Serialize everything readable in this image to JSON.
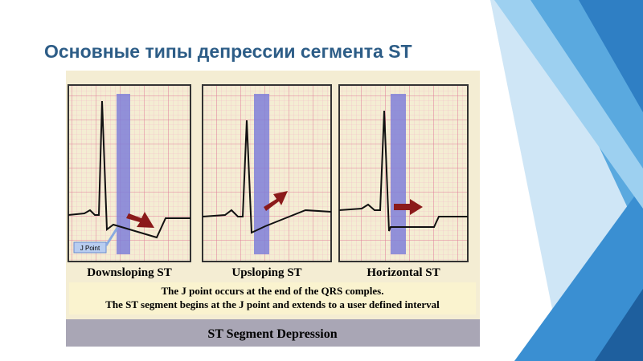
{
  "title": "Основные типы депрессии сегмента ST",
  "panels": [
    {
      "label": "Downsloping ST"
    },
    {
      "label": "Upsloping ST"
    },
    {
      "label": "Horizontal ST"
    }
  ],
  "j_point_label": "J Point",
  "note": [
    "The J point occurs at the end of the QRS comples.",
    "The ST segment begins at the J point and extends to a user defined interval"
  ],
  "caption": "ST Segment Depression"
}
